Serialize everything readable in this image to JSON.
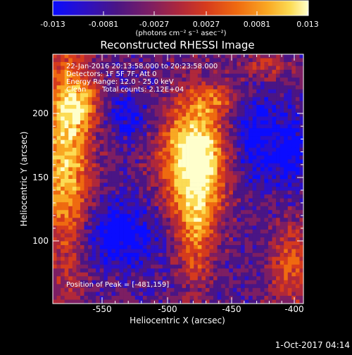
{
  "colorbar": {
    "ticks": [
      "-0.013",
      "-0.0081",
      "-0.0027",
      "0.0027",
      "0.0081",
      "0.013"
    ],
    "units_label": "(photons cm⁻² s⁻¹ asec⁻²)",
    "colors": [
      "#0a0cff",
      "#2b10c8",
      "#4a1585",
      "#7d1e63",
      "#b0283a",
      "#d63b1d",
      "#ef6a10",
      "#f9a823",
      "#fcdc55",
      "#ffffcc"
    ]
  },
  "title": "Reconstructed RHESSI Image",
  "info": {
    "line1": "22-Jan-2016 20:13:58.000 to 20:23:58.000",
    "line2": "Detectors: 1F 5F 7F, Att 0",
    "line3": "Energy Range: 12.0 - 25.0 keV",
    "line4_a": "Clean",
    "line4_b": "Total counts: 2.12E+04"
  },
  "peak": "Position of Peak = [-481,159]",
  "axes": {
    "xlabel": "Heliocentric X (arcsec)",
    "ylabel": "Heliocentric Y (arcsec)",
    "xticks": [
      "-550",
      "-500",
      "-450",
      "-400"
    ],
    "yticks": [
      "100",
      "150",
      "200"
    ]
  },
  "timestamp": "1-Oct-2017 04:14"
}
